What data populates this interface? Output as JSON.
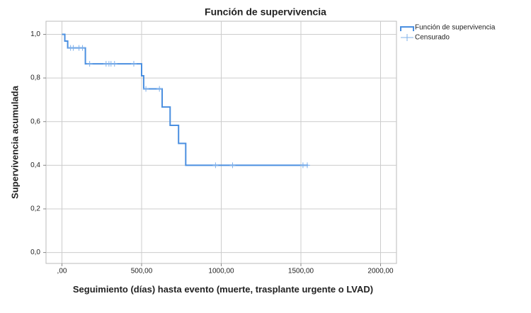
{
  "chart_data": {
    "type": "step",
    "title": "Función de supervivencia",
    "x_label": "Seguimiento (días) hasta evento (muerte, trasplante urgente o LVAD)",
    "y_label": "Supervivencia acumulada",
    "xlim": [
      -100,
      2100
    ],
    "ylim": [
      -0.05,
      1.06
    ],
    "xticks": [
      {
        "value": 0,
        "label": ",00"
      },
      {
        "value": 500,
        "label": "500,00"
      },
      {
        "value": 1000,
        "label": "1000,00"
      },
      {
        "value": 1500,
        "label": "1500,00"
      },
      {
        "value": 2000,
        "label": "2000,00"
      }
    ],
    "yticks": [
      {
        "value": 0,
        "label": "0,0"
      },
      {
        "value": 0.2,
        "label": "0,2"
      },
      {
        "value": 0.4,
        "label": "0,4"
      },
      {
        "value": 0.6,
        "label": "0,6"
      },
      {
        "value": 0.8,
        "label": "0,8"
      },
      {
        "value": 1,
        "label": "1,0"
      }
    ],
    "grid": true,
    "legend": "right",
    "series": [
      {
        "name": "Función de supervivencia",
        "color": "#4a8fe0",
        "x": [
          0,
          18,
          36,
          147,
          500,
          513,
          629,
          679,
          732,
          777,
          1545
        ],
        "values": [
          1,
          0.969,
          0.938,
          0.865,
          0.81,
          0.75,
          0.667,
          0.583,
          0.5,
          0.4,
          0.4
        ]
      },
      {
        "name": "Censurado",
        "color": "#7fb0ea",
        "x": [
          54,
          71,
          107,
          129,
          174,
          277,
          295,
          308,
          330,
          451,
          527,
          612,
          964,
          1071,
          1513,
          1540
        ],
        "values": [
          0.938,
          0.938,
          0.938,
          0.938,
          0.865,
          0.865,
          0.865,
          0.865,
          0.865,
          0.865,
          0.75,
          0.75,
          0.4,
          0.4,
          0.4,
          0.4
        ]
      }
    ]
  }
}
